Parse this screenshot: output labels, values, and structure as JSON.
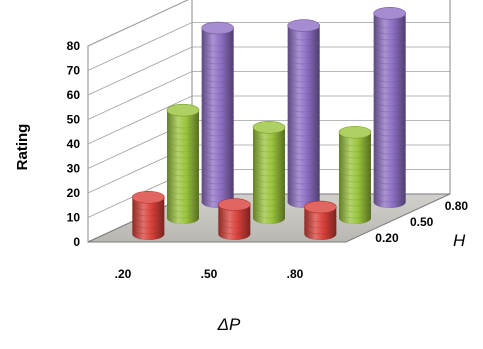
{
  "chart_data": {
    "type": "bar",
    "variant": "3d-cylinder",
    "ylabel": "Rating",
    "xlabel": "ΔP",
    "zlabel": "H",
    "y_ticks": [
      "0",
      "10",
      "20",
      "30",
      "40",
      "50",
      "60",
      "70",
      "80"
    ],
    "ylim": [
      0,
      80
    ],
    "categories": [
      ".20",
      ".50",
      ".80"
    ],
    "series": [
      {
        "name": "0.20",
        "color": "#d9403a",
        "values": [
          15,
          12,
          11
        ]
      },
      {
        "name": "0.50",
        "color": "#9ac43c",
        "values": [
          44,
          37,
          35
        ]
      },
      {
        "name": "0.80",
        "color": "#8e6fc4",
        "values": [
          71,
          72,
          77
        ]
      }
    ],
    "depth_labels": [
      "0.20",
      "0.50",
      "0.80"
    ],
    "grid": true
  }
}
